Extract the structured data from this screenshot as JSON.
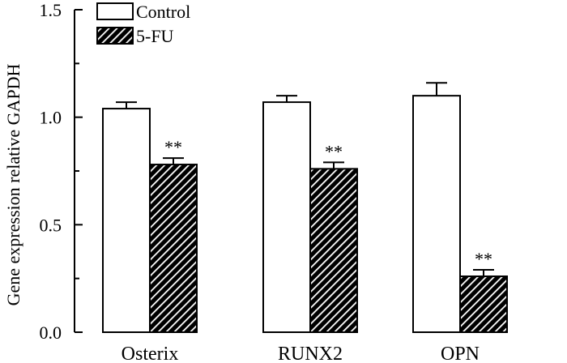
{
  "chart_data": {
    "type": "bar",
    "title": "",
    "xlabel": "",
    "ylabel": "Gene expression relative GAPDH",
    "ylim": [
      0,
      1.5
    ],
    "yticks": [
      "0.0",
      "0.5",
      "1.0",
      "1.5"
    ],
    "categories": [
      "Osterix",
      "RUNX2",
      "OPN"
    ],
    "series": [
      {
        "name": "Control",
        "values": [
          1.04,
          1.07,
          1.1
        ],
        "errors": [
          0.03,
          0.03,
          0.06
        ],
        "fill": "#ffffff"
      },
      {
        "name": "5-FU",
        "values": [
          0.78,
          0.76,
          0.26
        ],
        "errors": [
          0.03,
          0.03,
          0.03
        ],
        "fill": "hatch"
      }
    ],
    "annotations": [
      "**",
      "**",
      "**"
    ],
    "legend_position": "top-left",
    "grid": false
  },
  "colors": {
    "stroke": "#000000",
    "background": "#ffffff"
  }
}
